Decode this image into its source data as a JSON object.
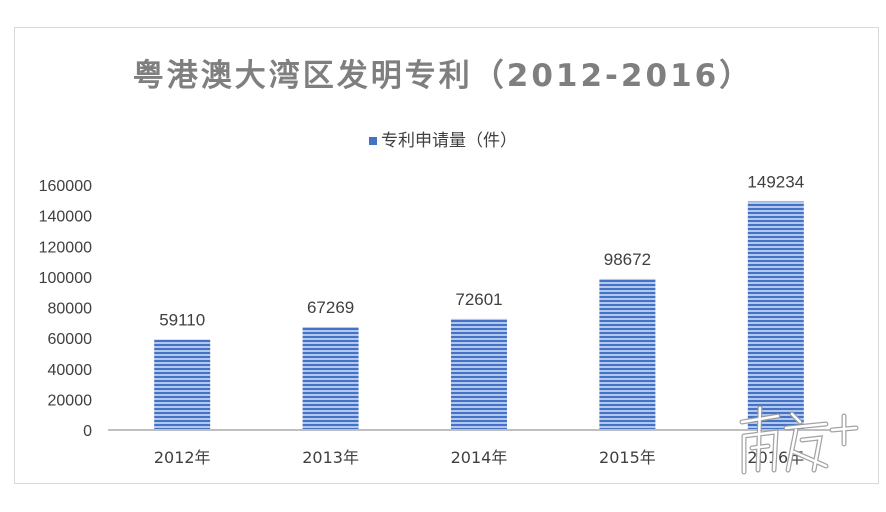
{
  "chart_data": {
    "type": "bar",
    "title": "粤港澳大湾区发明专利（2012-2016）",
    "categories": [
      "2012年",
      "2013年",
      "2014年",
      "2015年",
      "2016年"
    ],
    "series": [
      {
        "name": "专利申请量（件）",
        "values": [
          59110,
          67269,
          72601,
          98672,
          149234
        ]
      }
    ],
    "ylim": [
      0,
      160000
    ],
    "yticks": [
      0,
      20000,
      40000,
      60000,
      80000,
      100000,
      120000,
      140000,
      160000
    ],
    "grid": false,
    "legend": "top",
    "colors": {
      "bar": "#4472c4",
      "bar_stripe": "#a9c0ea"
    },
    "data_labels": true
  },
  "watermark": "南方+"
}
